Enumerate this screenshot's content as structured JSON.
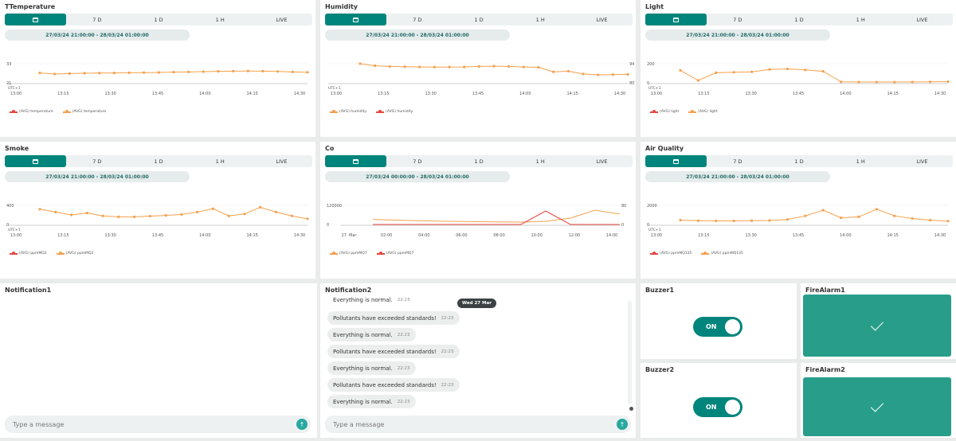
{
  "range_buttons": [
    "7 D",
    "1 D",
    "1 H",
    "LIVE"
  ],
  "charts": [
    {
      "title": "TTemperature",
      "date_range": "27/03/24 21:00:00 - 28/03/24 01:00:00",
      "utc": "UTC+1",
      "y_ticks_left": [
        "33",
        "21"
      ],
      "y_ticks_right": [],
      "x_ticks": [
        "13:00",
        "13:15",
        "13:30",
        "13:45",
        "14:00",
        "14:15",
        "14:30"
      ],
      "legend": [
        {
          "label": "(AVG) temperature",
          "color": "#e8473e"
        },
        {
          "label": "(AVG) temperature",
          "color": "#f6a04d"
        }
      ]
    },
    {
      "title": "Humidity",
      "date_range": "27/03/24 21:00:00 - 28/03/24 01:00:00",
      "utc": "UTC+1",
      "y_ticks_left": [],
      "y_ticks_right": [
        "94",
        "80"
      ],
      "x_ticks": [
        "13:00",
        "13:15",
        "13:30",
        "13:45",
        "14:00",
        "14:15",
        "14:30"
      ],
      "legend": [
        {
          "label": "(AVG) humidity",
          "color": "#f6a04d"
        },
        {
          "label": "(AVG) humidity",
          "color": "#e8473e"
        }
      ]
    },
    {
      "title": "Light",
      "date_range": "27/03/24 21:00:00 - 28/03/24 01:00:00",
      "utc": "UTC+1",
      "y_ticks_left": [
        "200",
        "0"
      ],
      "y_ticks_right": [],
      "x_ticks": [
        "13:00",
        "13:15",
        "13:30",
        "13:45",
        "14:00",
        "14:15",
        "14:30"
      ],
      "legend": [
        {
          "label": "(AVG) light",
          "color": "#e8473e"
        },
        {
          "label": "(AVG) light",
          "color": "#f6a04d"
        }
      ]
    },
    {
      "title": "Smoke",
      "date_range": "27/03/24 21:00:00 - 28/03/24 01:00:00",
      "utc": "UTC+1",
      "y_ticks_left": [
        "400",
        "0"
      ],
      "y_ticks_right": [],
      "x_ticks": [
        "13:00",
        "13:15",
        "13:30",
        "13:45",
        "14:00",
        "14:15",
        "14:30"
      ],
      "legend": [
        {
          "label": "(AVG) ppmMQ2",
          "color": "#e8473e"
        },
        {
          "label": "(AVG) ppmMQ2",
          "color": "#f6a04d"
        }
      ]
    },
    {
      "title": "Co",
      "date_range": "27/03/24 00:00:00 - 28/03/24 01:00:00",
      "utc": "",
      "y_ticks_left": [
        "120000",
        "0"
      ],
      "y_ticks_right": [
        "80",
        "0"
      ],
      "x_ticks": [
        "27. Mar",
        "02:00",
        "04:00",
        "06:00",
        "08:00",
        "10:00",
        "12:00",
        "14:00"
      ],
      "legend": [
        {
          "label": "(AVG) ppmMQ7",
          "color": "#f6a04d"
        },
        {
          "label": "(AVG) ppmMQ7",
          "color": "#e8473e"
        }
      ]
    },
    {
      "title": "Air Quality",
      "date_range": "27/03/24 21:00:00 - 28/03/24 01:00:00",
      "utc": "UTC+1",
      "y_ticks_left": [
        "2000",
        "0"
      ],
      "y_ticks_right": [],
      "x_ticks": [
        "13:00",
        "13:15",
        "13:30",
        "13:45",
        "14:00",
        "14:15",
        "14:30"
      ],
      "legend": [
        {
          "label": "(AVG) ppmMQ135",
          "color": "#e8473e"
        },
        {
          "label": "(AVG) ppmMQ135",
          "color": "#f6a04d"
        }
      ]
    }
  ],
  "chart_data": [
    {
      "type": "line",
      "title": "TTemperature",
      "x": [
        "13:05",
        "13:10",
        "13:15",
        "13:20",
        "13:25",
        "13:30",
        "13:35",
        "13:40",
        "13:45",
        "13:50",
        "13:55",
        "14:00",
        "14:05",
        "14:10",
        "14:15",
        "14:20",
        "14:25",
        "14:30",
        "14:35"
      ],
      "series": [
        {
          "name": "(AVG) temperature",
          "values": [
            27.2,
            26.5,
            26.8,
            27.0,
            27.1,
            27.2,
            27.3,
            27.4,
            27.5,
            27.7,
            27.8,
            28.0,
            28.2,
            28.3,
            28.4,
            28.3,
            28.1,
            27.8,
            27.6
          ]
        }
      ],
      "ylim": [
        21,
        33
      ]
    },
    {
      "type": "line",
      "title": "Humidity",
      "x": [
        "13:07",
        "13:10",
        "13:15",
        "13:20",
        "13:25",
        "13:30",
        "13:35",
        "13:40",
        "13:45",
        "13:50",
        "13:55",
        "14:00",
        "14:05",
        "14:10",
        "14:15",
        "14:20",
        "14:25",
        "14:30",
        "14:35"
      ],
      "series": [
        {
          "name": "(AVG) humidity",
          "values": [
            94,
            92.5,
            92,
            91.8,
            91.6,
            91.5,
            91.5,
            91.6,
            92,
            92.2,
            92,
            91.6,
            91.3,
            88,
            88.5,
            86.5,
            85.8,
            86.0,
            86.2
          ]
        }
      ],
      "ylim": [
        80,
        94
      ]
    },
    {
      "type": "line",
      "title": "Light",
      "x": [
        "13:07",
        "13:10",
        "13:13",
        "13:16",
        "13:19",
        "13:22",
        "13:25",
        "13:28",
        "13:31",
        "13:35",
        "13:45",
        "13:55",
        "14:05",
        "14:15",
        "14:25",
        "14:35"
      ],
      "series": [
        {
          "name": "(AVG) light",
          "values": [
            130,
            25,
            105,
            110,
            115,
            140,
            145,
            135,
            120,
            10,
            8,
            8,
            8,
            8,
            10,
            12
          ]
        }
      ],
      "ylim": [
        0,
        200
      ]
    },
    {
      "type": "line",
      "title": "Smoke",
      "x": [
        "13:07",
        "13:10",
        "13:13",
        "13:16",
        "13:20",
        "13:25",
        "13:30",
        "13:40",
        "13:50",
        "14:00",
        "14:05",
        "14:10",
        "14:15",
        "14:20",
        "14:23",
        "14:27",
        "14:30",
        "14:35"
      ],
      "series": [
        {
          "name": "(AVG) ppmMQ2",
          "values": [
            320,
            260,
            200,
            240,
            180,
            160,
            160,
            175,
            190,
            210,
            260,
            330,
            180,
            220,
            360,
            260,
            180,
            120
          ]
        }
      ],
      "ylim": [
        0,
        400
      ]
    },
    {
      "type": "line",
      "title": "Co",
      "x": [
        "27. Mar",
        "02:00",
        "04:00",
        "06:00",
        "08:00",
        "10:00",
        "11:00",
        "12:00",
        "13:00",
        "14:00",
        "14:30"
      ],
      "series": [
        {
          "name": "(AVG) ppmMQ7",
          "values": [
            32000,
            27000,
            23000,
            20000,
            18000,
            16000,
            15000,
            20000,
            40000,
            90000,
            65000
          ]
        },
        {
          "name": "(AVG) ppmMQ7",
          "values": [
            0,
            0,
            0,
            0,
            0,
            0,
            0,
            85000,
            0,
            0,
            0
          ]
        }
      ],
      "ylim": [
        0,
        120000
      ]
    },
    {
      "type": "line",
      "title": "Air Quality",
      "x": [
        "13:07",
        "13:15",
        "13:25",
        "13:35",
        "13:45",
        "13:55",
        "14:00",
        "14:05",
        "14:08",
        "14:12",
        "14:16",
        "14:20",
        "14:23",
        "14:27",
        "14:32",
        "14:37"
      ],
      "series": [
        {
          "name": "(AVG) ppmMQ135",
          "values": [
            450,
            400,
            380,
            380,
            400,
            420,
            520,
            900,
            1500,
            700,
            800,
            1600,
            900,
            620,
            450,
            350
          ]
        }
      ],
      "ylim": [
        0,
        2000
      ]
    }
  ],
  "notification1": {
    "title": "Notification1",
    "input_placeholder": "Type a message"
  },
  "notification2": {
    "title": "Notification2",
    "date_chip": "Wed 27 Mar",
    "messages": [
      {
        "text": "Everything is normal.",
        "time": "22:23"
      },
      {
        "text": "Pollutants have exceeded standards!",
        "time": "22:23"
      },
      {
        "text": "Everything is normal.",
        "time": "22:23"
      },
      {
        "text": "Pollutants have exceeded standards!",
        "time": "22:23"
      },
      {
        "text": "Everything is normal.",
        "time": "22:23"
      },
      {
        "text": "Pollutants have exceeded standards!",
        "time": "22:23"
      },
      {
        "text": "Everything is normal.",
        "time": "22:23"
      }
    ],
    "input_placeholder": "Type a message"
  },
  "buzzer1": {
    "title": "Buzzer1",
    "state": "ON"
  },
  "buzzer2": {
    "title": "Buzzer2",
    "state": "ON"
  },
  "firealarm1": {
    "title": "FireAlarm1"
  },
  "firealarm2": {
    "title": "FireAlarm2"
  },
  "colors": {
    "accent": "#00857c",
    "line_orange": "#f6a04d",
    "line_red": "#e8473e",
    "alarm_green": "#289e8a"
  }
}
